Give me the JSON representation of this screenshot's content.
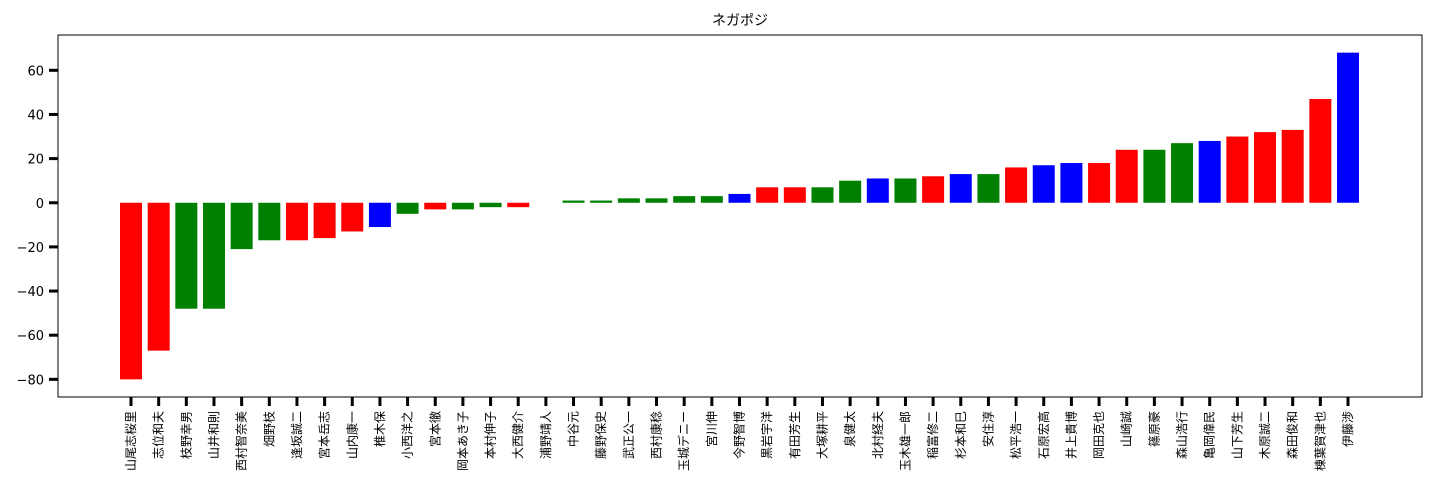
{
  "chart_data": {
    "type": "bar",
    "title": "ネガポジ",
    "xlabel": "",
    "ylabel": "",
    "ylim": [
      -88,
      76
    ],
    "yticks": [
      -80,
      -60,
      -40,
      -20,
      0,
      20,
      40,
      60
    ],
    "ytick_labels": [
      "−80",
      "−60",
      "−40",
      "−20",
      "0",
      "20",
      "40",
      "60"
    ],
    "grid": false,
    "legend": "none",
    "palette": {
      "red": "#ff0000",
      "green": "#008000",
      "blue": "#0000ff"
    },
    "categories": [
      "山尾志桜里",
      "志位和夫",
      "枝野幸男",
      "山井和則",
      "西村智奈美",
      "畑野枝",
      "逢坂誠二",
      "宮本岳志",
      "山内康一",
      "椎木保",
      "小西洋之",
      "宮本徹",
      "岡本あき子",
      "本村伸子",
      "大西健介",
      "浦野靖人",
      "中谷元",
      "藤野保史",
      "武正公一",
      "西村康稔",
      "玉城デニー",
      "宮川伸",
      "今野智博",
      "黒岩宇洋",
      "有田芳生",
      "大塚耕平",
      "泉健太",
      "北村経夫",
      "玉木雄一郎",
      "稲富修二",
      "杉本和巳",
      "安住淳",
      "松平浩一",
      "石原宏高",
      "井上貴博",
      "岡田克也",
      "山崎誠",
      "篠原豪",
      "森山浩行",
      "亀岡偉民",
      "山下芳生",
      "木原誠二",
      "森田俊和",
      "棟葉賀津也",
      "伊藤渉"
    ],
    "values": [
      -80,
      -67,
      -48,
      -48,
      -21,
      -17,
      -17,
      -16,
      -13,
      -11,
      -5,
      -3,
      -3,
      -2,
      -2,
      0,
      1,
      1,
      2,
      2,
      3,
      3,
      4,
      7,
      7,
      7,
      10,
      11,
      11,
      12,
      13,
      13,
      16,
      17,
      18,
      18,
      24,
      24,
      27,
      28,
      30,
      32,
      33,
      47,
      68
    ],
    "colors": [
      "red",
      "red",
      "green",
      "green",
      "green",
      "green",
      "red",
      "red",
      "red",
      "blue",
      "green",
      "red",
      "green",
      "green",
      "red",
      "green",
      "green",
      "green",
      "green",
      "green",
      "green",
      "green",
      "blue",
      "red",
      "red",
      "green",
      "green",
      "blue",
      "green",
      "red",
      "blue",
      "green",
      "red",
      "blue",
      "blue",
      "red",
      "red",
      "green",
      "green",
      "blue",
      "red",
      "red",
      "red",
      "red",
      "blue"
    ]
  }
}
